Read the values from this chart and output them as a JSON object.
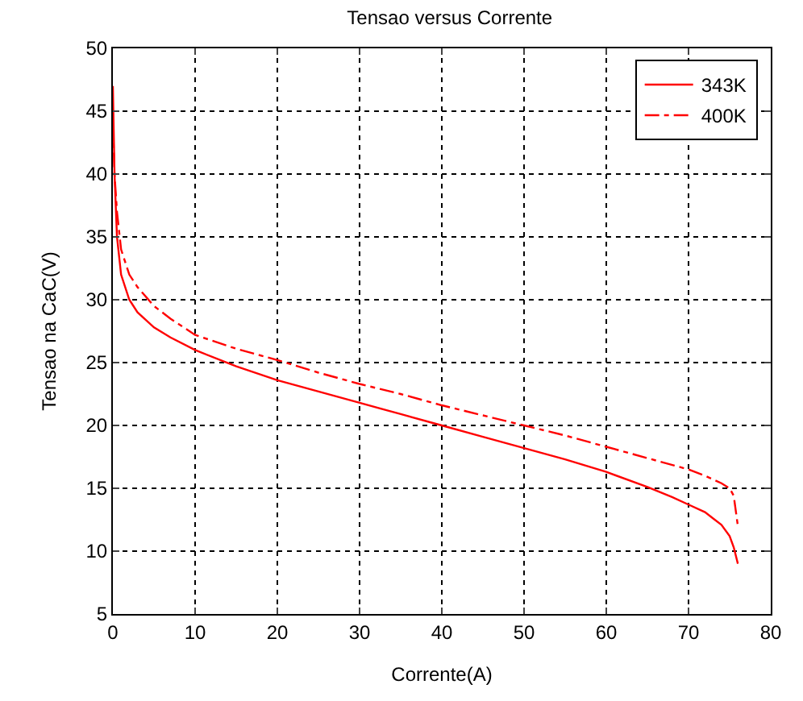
{
  "chart_data": {
    "type": "line",
    "title": "Tensao versus Corrente",
    "xlabel": "Corrente(A)",
    "ylabel": "Tensao na CaC(V)",
    "xlim": [
      0,
      80
    ],
    "xticks": [
      0,
      10,
      20,
      30,
      40,
      50,
      60,
      70,
      80
    ],
    "ylim": [
      5,
      50
    ],
    "yticks": [
      5,
      10,
      15,
      20,
      25,
      30,
      35,
      40,
      45,
      50
    ],
    "grid": true,
    "legend": "top right",
    "marker": "none",
    "series": [
      {
        "name": "343K",
        "color": "#ff0000",
        "line_style": "solid",
        "x": [
          0,
          0.2,
          0.5,
          1,
          2,
          3,
          5,
          7,
          10,
          15,
          20,
          25,
          30,
          35,
          40,
          45,
          50,
          55,
          60,
          65,
          68,
          70,
          72,
          73,
          74,
          75,
          75.5,
          76
        ],
        "values": [
          47,
          40,
          35,
          32,
          30,
          29,
          27.8,
          27,
          26,
          24.7,
          23.6,
          22.7,
          21.8,
          20.9,
          20,
          19.1,
          18.2,
          17.3,
          16.3,
          15.1,
          14.3,
          13.7,
          13.1,
          12.6,
          12.1,
          11.2,
          10.3,
          9
        ]
      },
      {
        "name": "400K",
        "color": "#ff0000",
        "line_style": "dashdot",
        "x": [
          0,
          0.2,
          0.5,
          1,
          2,
          3,
          5,
          7,
          10,
          15,
          20,
          25,
          30,
          35,
          40,
          45,
          50,
          55,
          60,
          65,
          70,
          72,
          74,
          75,
          75.5,
          76
        ],
        "values": [
          44,
          40,
          37,
          34,
          32,
          31,
          29.5,
          28.5,
          27.2,
          26.1,
          25.2,
          24.2,
          23.3,
          22.5,
          21.6,
          20.8,
          20,
          19.2,
          18.3,
          17.4,
          16.5,
          16,
          15.4,
          15,
          14.4,
          12
        ]
      }
    ]
  }
}
